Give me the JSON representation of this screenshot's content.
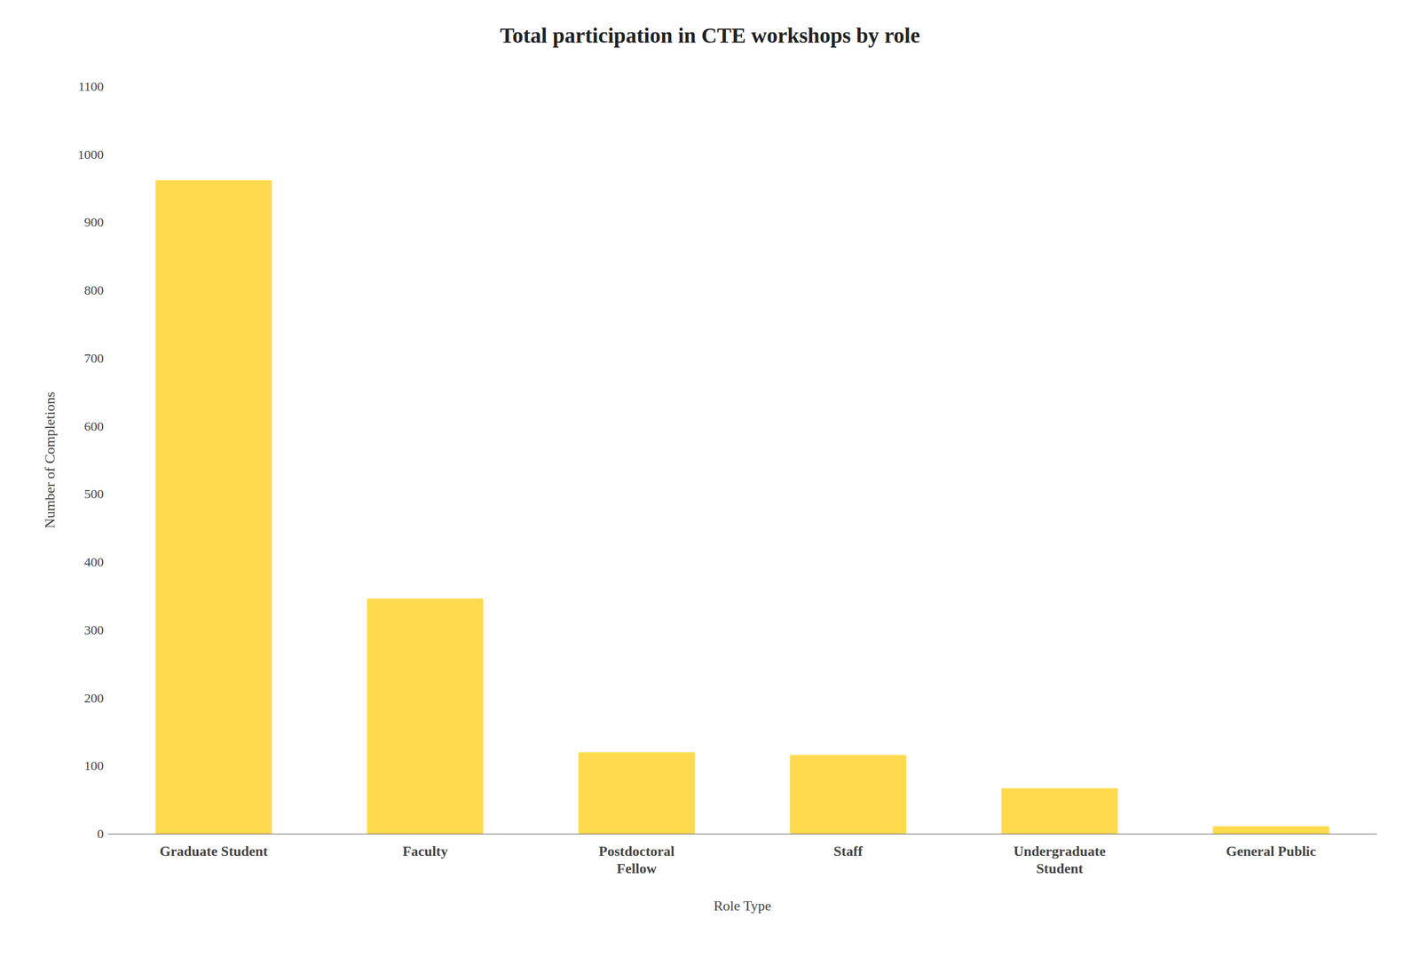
{
  "chart_data": {
    "type": "bar",
    "title": "Total participation in CTE workshops by role",
    "xlabel": "Role Type",
    "ylabel": "Number of Completions",
    "categories": [
      "Graduate Student",
      "Faculty",
      "Postdoctoral\nFellow",
      "Staff",
      "Undergraduate\nStudent",
      "General Public"
    ],
    "values": [
      962,
      346,
      120,
      116,
      67,
      11
    ],
    "color": "#FFDA4E",
    "ylim": [
      0,
      1100
    ],
    "yticks": [
      0,
      100,
      200,
      300,
      400,
      500,
      600,
      700,
      800,
      900,
      1000,
      1100
    ],
    "grid": false
  }
}
